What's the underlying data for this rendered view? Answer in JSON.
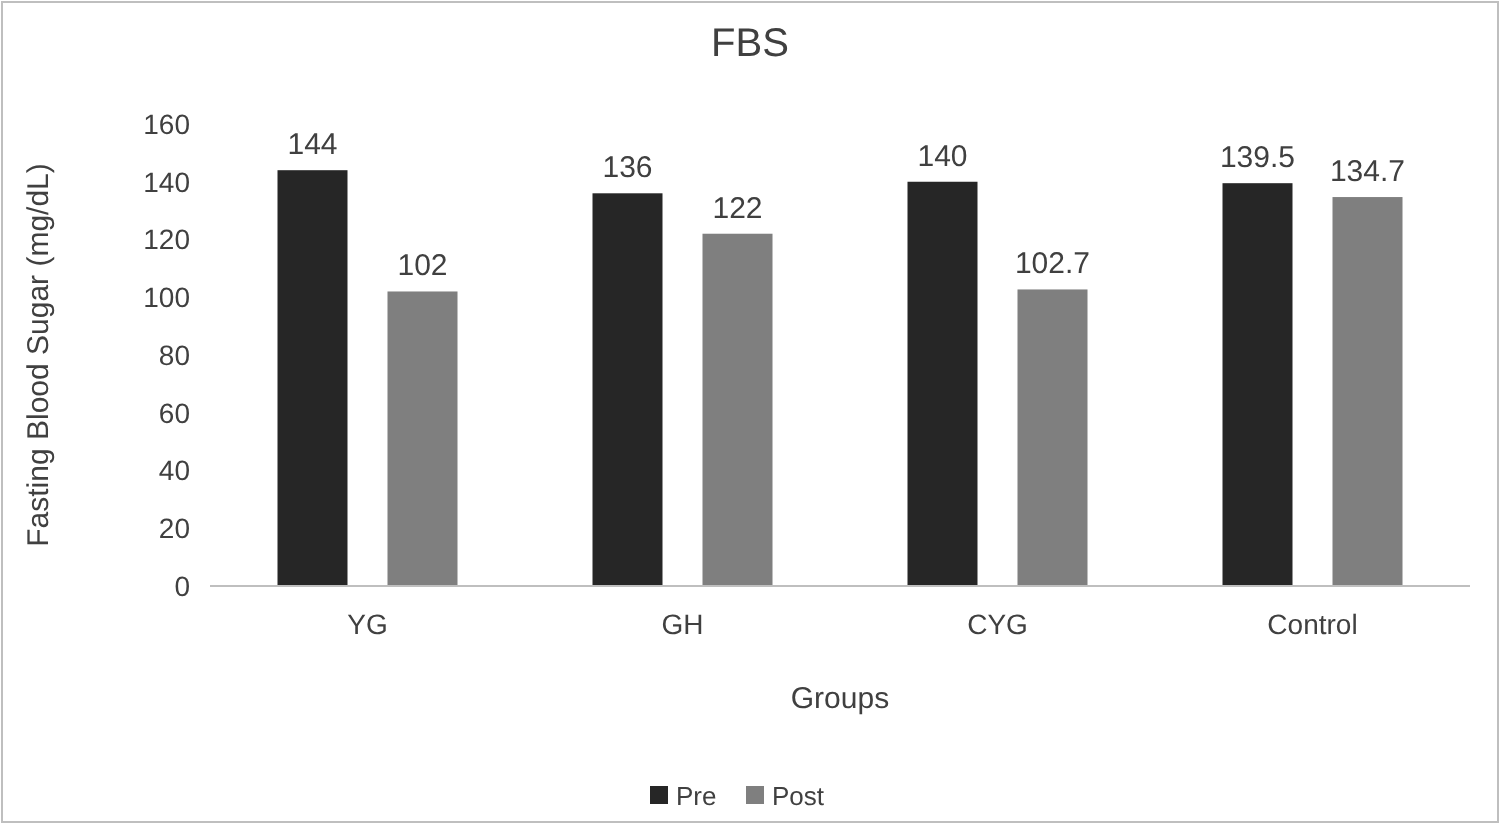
{
  "chart_data": {
    "type": "bar",
    "title": "FBS",
    "xlabel": "Groups",
    "ylabel": "Fasting Blood Sugar (mg/dL)",
    "categories": [
      "YG",
      "GH",
      "CYG",
      "Control"
    ],
    "series": [
      {
        "name": "Pre",
        "color": "#262626",
        "values": [
          144,
          136,
          140,
          139.5
        ]
      },
      {
        "name": "Post",
        "color": "#7f7f7f",
        "values": [
          102,
          122,
          102.7,
          134.7
        ]
      }
    ],
    "ylim": [
      0,
      160
    ],
    "yticks": [
      0,
      20,
      40,
      60,
      80,
      100,
      120,
      140,
      160
    ],
    "data_labels": true,
    "legend": "bottom"
  }
}
